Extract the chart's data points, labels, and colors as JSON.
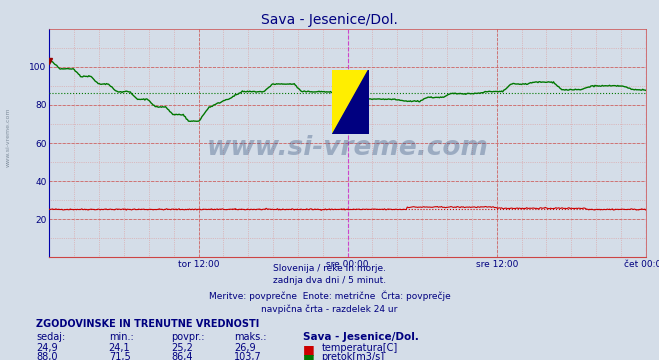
{
  "title": "Sava - Jesenice/Dol.",
  "title_color": "#000080",
  "bg_color": "#d4dde8",
  "plot_bg_color": "#d4dde8",
  "x_tick_labels": [
    "tor 12:00",
    "sre 00:00",
    "sre 12:00",
    "čet 00:00"
  ],
  "x_tick_positions": [
    0.25,
    0.5,
    0.75,
    1.0
  ],
  "y_min": 0,
  "y_max": 120,
  "y_ticks": [
    20,
    40,
    60,
    80,
    100
  ],
  "red_line_color": "#cc0000",
  "green_line_color": "#007700",
  "vline_color_magenta": "#cc44cc",
  "grid_red_color": "#dd8888",
  "footer_text": "Slovenija / reke in morje.\nzadnja dva dni / 5 minut.\nMeritve: povprečne  Enote: metrične  Črta: povprečje\nnavpična črta - razdelek 24 ur",
  "footer_color": "#000080",
  "table_header": "ZGODOVINSKE IN TRENUTNE VREDNOSTI",
  "table_header_color": "#000080",
  "col_headers": [
    "sedaj:",
    "min.:",
    "povpr.:",
    "maks.:",
    "Sava - Jesenice/Dol."
  ],
  "row1_vals": [
    "24,9",
    "24,1",
    "25,2",
    "26,9"
  ],
  "row2_vals": [
    "88,0",
    "71,5",
    "86,4",
    "103,7"
  ],
  "legend_temp": "temperatura[C]",
  "legend_flow": "pretok[m3/s]",
  "watermark_text": "www.si-vreme.com",
  "watermark_color": "#1a3a6a",
  "watermark_alpha": 0.3,
  "avg_temp": 25.2,
  "avg_flow": 86.4,
  "n_points": 576
}
